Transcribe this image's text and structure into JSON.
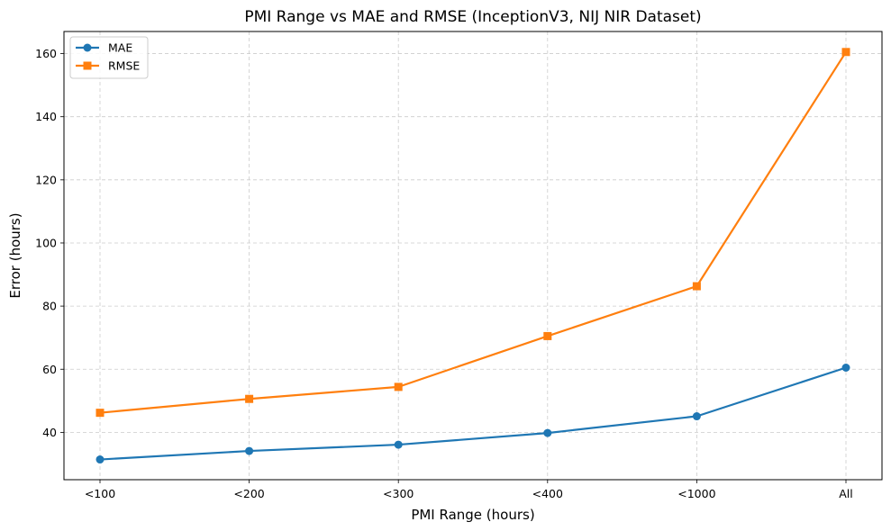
{
  "chart_data": {
    "type": "line",
    "title": "PMI Range vs MAE and RMSE (InceptionV3, NIJ NIR Dataset)",
    "xlabel": "PMI Range (hours)",
    "ylabel": "Error (hours)",
    "categories": [
      "<100",
      "<200",
      "<300",
      "<400",
      "<1000",
      "All"
    ],
    "ylim": [
      25,
      167
    ],
    "yticks": [
      40,
      60,
      80,
      100,
      120,
      140,
      160
    ],
    "grid": true,
    "legend_position": "top-left",
    "series": [
      {
        "name": "MAE",
        "values": [
          31.4,
          34.1,
          36.1,
          39.8,
          45.1,
          60.5
        ],
        "color": "#1f77b4",
        "marker": "circle"
      },
      {
        "name": "RMSE",
        "values": [
          46.2,
          50.6,
          54.4,
          70.5,
          86.3,
          160.5
        ],
        "color": "#ff7f0e",
        "marker": "square"
      }
    ]
  }
}
